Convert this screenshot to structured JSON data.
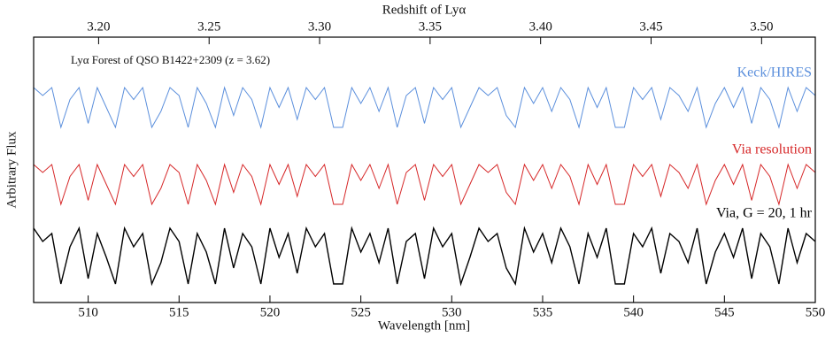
{
  "chart_data": {
    "type": "line",
    "title": "Redshift of Lyα",
    "annotation": "Lyα Forest of QSO B1422+2309 (z = 3.62)",
    "x_label": "Wavelength [nm]",
    "y_label": "Arbitrary Flux",
    "xlim": [
      507,
      550
    ],
    "xticks": [
      510,
      515,
      520,
      525,
      530,
      535,
      540,
      545,
      550
    ],
    "x2lim": [
      3.1706,
      3.5243
    ],
    "x2ticks": [
      {
        "value": 3.2,
        "label": "3.20"
      },
      {
        "value": 3.25,
        "label": "3.25"
      },
      {
        "value": 3.3,
        "label": "3.30"
      },
      {
        "value": 3.35,
        "label": "3.35"
      },
      {
        "value": 3.4,
        "label": "3.40"
      },
      {
        "value": 3.45,
        "label": "3.45"
      },
      {
        "value": 3.5,
        "label": "3.50"
      }
    ],
    "ylim": [
      0,
      10
    ],
    "x": [
      507,
      507.5,
      508,
      508.5,
      509,
      509.5,
      510,
      510.5,
      511,
      511.5,
      512,
      512.5,
      513,
      513.5,
      514,
      514.5,
      515,
      515.5,
      516,
      516.5,
      517,
      517.5,
      518,
      518.5,
      519,
      519.5,
      520,
      520.5,
      521,
      521.5,
      522,
      522.5,
      523,
      523.5,
      524,
      524.5,
      525,
      525.5,
      526,
      526.5,
      527,
      527.5,
      528,
      528.5,
      529,
      529.5,
      530,
      530.5,
      531,
      531.5,
      532,
      532.5,
      533,
      533.5,
      534,
      534.5,
      535,
      535.5,
      536,
      536.5,
      537,
      537.5,
      538,
      538.5,
      539,
      539.5,
      540,
      540.5,
      541,
      541.5,
      542,
      542.5,
      543,
      543.5,
      544,
      544.5,
      545,
      545.5,
      546,
      546.5,
      547,
      547.5,
      548,
      548.5,
      549,
      549.5,
      550
    ],
    "series": [
      {
        "name": "Keck/HIRES",
        "color": "#5b8fdc",
        "values": [
          8.1,
          7.8,
          8.1,
          6.6,
          7.65,
          8.1,
          6.75,
          8.1,
          7.35,
          6.6,
          8.1,
          7.65,
          8.1,
          6.6,
          7.2,
          8.1,
          7.8,
          6.6,
          8.1,
          7.5,
          6.6,
          8.1,
          7.05,
          8.1,
          7.65,
          6.6,
          8.1,
          7.35,
          8.1,
          6.9,
          8.1,
          7.65,
          8.1,
          6.6,
          6.6,
          8.1,
          7.5,
          8.1,
          7.2,
          8.1,
          6.6,
          7.8,
          8.1,
          6.75,
          8.1,
          7.65,
          8.1,
          6.6,
          7.35,
          8.1,
          7.8,
          8.1,
          7.05,
          6.6,
          8.1,
          7.5,
          8.1,
          7.2,
          8.1,
          7.65,
          6.6,
          8.1,
          7.35,
          8.1,
          6.6,
          6.6,
          8.1,
          7.65,
          8.1,
          6.9,
          8.1,
          7.8,
          7.2,
          8.1,
          6.6,
          7.5,
          8.1,
          7.35,
          8.1,
          6.75,
          8.1,
          7.65,
          6.6,
          8.1,
          7.2,
          8.1,
          7.8
        ]
      },
      {
        "name": "Via resolution",
        "color": "#d62728",
        "values": [
          5.2,
          4.9,
          5.2,
          3.7,
          4.75,
          5.2,
          3.85,
          5.2,
          4.45,
          3.7,
          5.2,
          4.75,
          5.2,
          3.7,
          4.3,
          5.2,
          4.9,
          3.7,
          5.2,
          4.6,
          3.7,
          5.2,
          4.15,
          5.2,
          4.75,
          3.7,
          5.2,
          4.45,
          5.2,
          4.0,
          5.2,
          4.75,
          5.2,
          3.7,
          3.7,
          5.2,
          4.6,
          5.2,
          4.3,
          5.2,
          3.7,
          4.9,
          5.2,
          3.85,
          5.2,
          4.75,
          5.2,
          3.7,
          4.45,
          5.2,
          4.9,
          5.2,
          4.15,
          3.7,
          5.2,
          4.6,
          5.2,
          4.3,
          5.2,
          4.75,
          3.7,
          5.2,
          4.45,
          5.2,
          3.7,
          3.7,
          5.2,
          4.75,
          5.2,
          4.0,
          5.2,
          4.9,
          4.3,
          5.2,
          3.7,
          4.6,
          5.2,
          4.45,
          5.2,
          3.85,
          5.2,
          4.75,
          3.7,
          5.2,
          4.3,
          5.2,
          4.9
        ]
      },
      {
        "name": "Via, G = 20, 1 hr",
        "color": "#000000",
        "values": [
          2.8,
          2.3,
          2.6,
          0.7,
          2.1,
          2.8,
          0.9,
          2.6,
          1.7,
          0.7,
          2.8,
          2.1,
          2.6,
          0.7,
          1.5,
          2.8,
          2.3,
          0.7,
          2.6,
          1.9,
          0.7,
          2.8,
          1.3,
          2.6,
          2.1,
          0.7,
          2.8,
          1.7,
          2.6,
          1.1,
          2.8,
          2.1,
          2.6,
          0.7,
          0.7,
          2.8,
          1.9,
          2.6,
          1.5,
          2.8,
          0.7,
          2.3,
          2.6,
          0.9,
          2.8,
          2.1,
          2.6,
          0.7,
          1.7,
          2.8,
          2.3,
          2.6,
          1.3,
          0.7,
          2.8,
          1.9,
          2.6,
          1.5,
          2.8,
          2.1,
          0.7,
          2.6,
          1.7,
          2.8,
          0.7,
          0.7,
          2.6,
          2.1,
          2.8,
          1.1,
          2.6,
          2.3,
          1.5,
          2.8,
          0.7,
          1.9,
          2.6,
          1.7,
          2.8,
          0.9,
          2.6,
          2.1,
          0.7,
          2.8,
          1.5,
          2.6,
          2.3
        ]
      }
    ]
  }
}
